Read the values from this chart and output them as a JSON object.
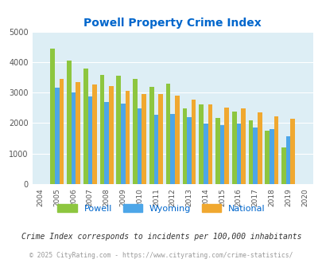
{
  "title": "Powell Property Crime Index",
  "years": [
    2004,
    2005,
    2006,
    2007,
    2008,
    2009,
    2010,
    2011,
    2012,
    2013,
    2014,
    2015,
    2016,
    2017,
    2018,
    2019,
    2020
  ],
  "powell": [
    null,
    4450,
    4050,
    3800,
    3570,
    3550,
    3450,
    3200,
    3300,
    2490,
    2620,
    2170,
    2380,
    2080,
    1750,
    1210,
    null
  ],
  "wyoming": [
    null,
    3150,
    3000,
    2870,
    2700,
    2630,
    2480,
    2270,
    2290,
    2200,
    1985,
    1930,
    1990,
    1850,
    1800,
    1580,
    null
  ],
  "national": [
    null,
    3460,
    3350,
    3260,
    3220,
    3060,
    2960,
    2960,
    2900,
    2770,
    2620,
    2510,
    2470,
    2360,
    2210,
    2140,
    null
  ],
  "powell_color": "#8dc63f",
  "wyoming_color": "#4da6e8",
  "national_color": "#f0a830",
  "bg_color": "#ddeef5",
  "title_color": "#0066cc",
  "grid_color": "#ffffff",
  "bar_width": 0.27,
  "ylim": [
    0,
    5000
  ],
  "yticks": [
    0,
    1000,
    2000,
    3000,
    4000,
    5000
  ],
  "footnote1": "Crime Index corresponds to incidents per 100,000 inhabitants",
  "footnote2": "© 2025 CityRating.com - https://www.cityrating.com/crime-statistics/",
  "legend_labels": [
    "Powell",
    "Wyoming",
    "National"
  ]
}
